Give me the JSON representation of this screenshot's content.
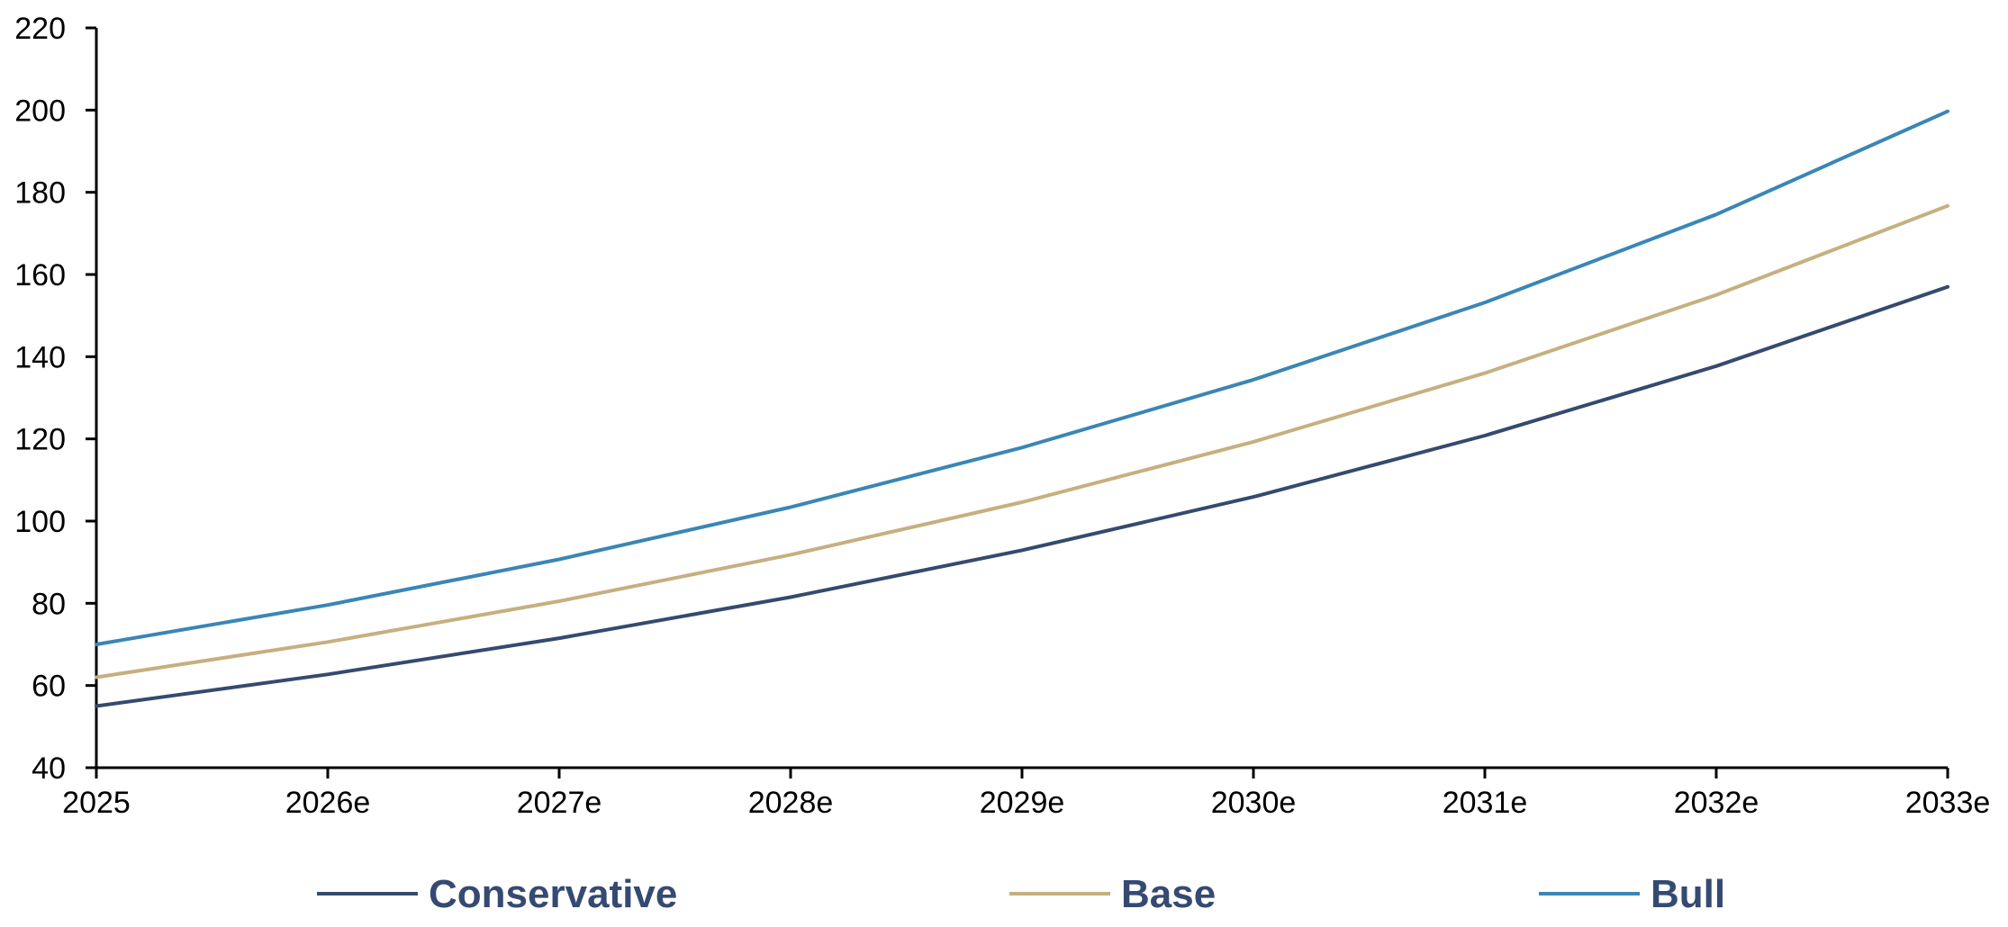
{
  "chart_data": {
    "type": "line",
    "x": [
      "2025",
      "2026e",
      "2027e",
      "2028e",
      "2029e",
      "2030e",
      "2031e",
      "2032e",
      "2033e"
    ],
    "ylim": [
      40,
      220
    ],
    "yticks": [
      40,
      60,
      80,
      100,
      120,
      140,
      160,
      180,
      200,
      220
    ],
    "grid": false,
    "legend_position": "bottom",
    "legend_text_color": "#354a72",
    "series": [
      {
        "name": "Conservative",
        "color": "#354a6e",
        "values": [
          55,
          62.7,
          71.5,
          81.5,
          92.9,
          105.9,
          120.8,
          137.7,
          157
        ]
      },
      {
        "name": "Base",
        "color": "#c5b07f",
        "values": [
          62,
          70.6,
          80.5,
          91.8,
          104.6,
          119.3,
          136,
          155,
          176.7
        ]
      },
      {
        "name": "Bull",
        "color": "#3a86b6",
        "values": [
          70,
          79.6,
          90.7,
          103.4,
          117.9,
          134.4,
          153.2,
          174.6,
          199.7
        ]
      }
    ]
  }
}
